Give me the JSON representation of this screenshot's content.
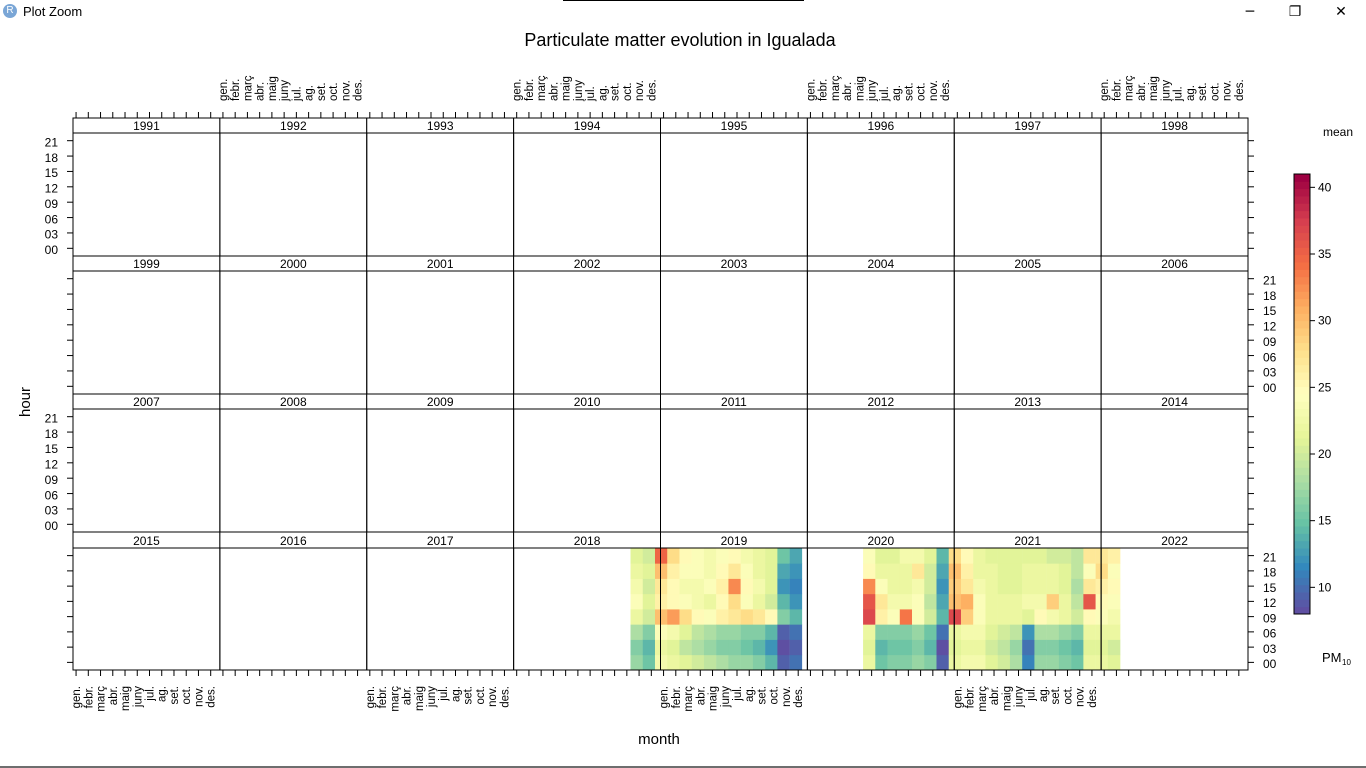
{
  "window": {
    "title": "Plot Zoom",
    "app_icon_letter": "R",
    "minimize_glyph": "─",
    "maximize_glyph": "❐",
    "close_glyph": "✕"
  },
  "chart_data": {
    "type": "heatmap",
    "title": "Particulate matter evolution in Igualada",
    "xlabel": "month",
    "ylabel": "hour",
    "legend_title": "mean",
    "legend_unit": "PM",
    "legend_unit_sub": "10",
    "legend_placement": "right",
    "legend_ticks": [
      10,
      15,
      20,
      25,
      30,
      35,
      40
    ],
    "value_range": [
      8,
      41
    ],
    "palette": [
      "#5e4fa2",
      "#3288bd",
      "#66c2a5",
      "#abdda4",
      "#e6f598",
      "#ffffbf",
      "#fee08b",
      "#fdae61",
      "#f46d43",
      "#d53e4f",
      "#9e0142"
    ],
    "months": [
      "gen.",
      "febr.",
      "març",
      "abr.",
      "maig",
      "juny",
      "jul.",
      "ag.",
      "set.",
      "oct.",
      "nov.",
      "des."
    ],
    "hour_ticks": [
      "00",
      "03",
      "06",
      "09",
      "12",
      "15",
      "18",
      "21"
    ],
    "panels": [
      "1991",
      "1992",
      "1993",
      "1994",
      "1995",
      "1996",
      "1997",
      "1998",
      "1999",
      "2000",
      "2001",
      "2002",
      "2003",
      "2004",
      "2005",
      "2006",
      "2007",
      "2008",
      "2009",
      "2010",
      "2011",
      "2012",
      "2013",
      "2014",
      "2015",
      "2016",
      "2017",
      "2018",
      "2019",
      "2020",
      "2021",
      "2022"
    ],
    "hours": [
      0,
      3,
      6,
      9,
      12,
      15,
      18,
      21
    ],
    "series": [
      {
        "year": 2018,
        "months": [
          11,
          12
        ],
        "values": [
          [
            17,
            15
          ],
          [
            16,
            14
          ],
          [
            18,
            16
          ],
          [
            22,
            20
          ],
          [
            24,
            21
          ],
          [
            23,
            20
          ],
          [
            22,
            21
          ],
          [
            21,
            20
          ]
        ]
      },
      {
        "year": 2019,
        "months": [
          1,
          2,
          3,
          4,
          5,
          6,
          7,
          8,
          9,
          10,
          11,
          12
        ],
        "values": [
          [
            23,
            22,
            21,
            20,
            19,
            18,
            17,
            17,
            16,
            14,
            9,
            10
          ],
          [
            22,
            21,
            19,
            18,
            17,
            16,
            16,
            15,
            14,
            12,
            8,
            9
          ],
          [
            24,
            23,
            21,
            19,
            18,
            17,
            17,
            16,
            16,
            14,
            9,
            10
          ],
          [
            30,
            32,
            28,
            25,
            24,
            26,
            27,
            28,
            27,
            25,
            16,
            14
          ],
          [
            26,
            25,
            24,
            23,
            22,
            25,
            28,
            24,
            22,
            20,
            14,
            12
          ],
          [
            27,
            25,
            23,
            23,
            24,
            26,
            33,
            25,
            23,
            21,
            12,
            11
          ],
          [
            30,
            26,
            24,
            24,
            23,
            25,
            27,
            24,
            22,
            21,
            13,
            12
          ],
          [
            35,
            28,
            25,
            24,
            23,
            24,
            25,
            23,
            22,
            21,
            15,
            13
          ]
        ]
      },
      {
        "year": 2020,
        "months": [
          6,
          7,
          8,
          9,
          10,
          11,
          12
        ],
        "values": [
          [
            22,
            15,
            16,
            16,
            17,
            16,
            9
          ],
          [
            21,
            14,
            15,
            15,
            16,
            14,
            8
          ],
          [
            22,
            16,
            16,
            16,
            17,
            15,
            10
          ],
          [
            37,
            26,
            24,
            34,
            24,
            20,
            14
          ],
          [
            36,
            27,
            23,
            23,
            24,
            19,
            13
          ],
          [
            33,
            24,
            22,
            22,
            23,
            20,
            12
          ],
          [
            25,
            22,
            22,
            22,
            27,
            20,
            13
          ],
          [
            24,
            21,
            21,
            23,
            23,
            21,
            14
          ]
        ]
      },
      {
        "year": 2021,
        "months": [
          1,
          2,
          3,
          4,
          5,
          6,
          7,
          8,
          9,
          10,
          11,
          12
        ],
        "values": [
          [
            22,
            23,
            23,
            21,
            20,
            18,
            11,
            17,
            17,
            16,
            15,
            22
          ],
          [
            21,
            22,
            22,
            20,
            19,
            17,
            10,
            16,
            16,
            15,
            14,
            21
          ],
          [
            22,
            23,
            23,
            21,
            20,
            19,
            12,
            18,
            18,
            17,
            16,
            22
          ],
          [
            37,
            29,
            24,
            22,
            22,
            22,
            21,
            25,
            23,
            22,
            20,
            25
          ],
          [
            30,
            31,
            24,
            22,
            22,
            22,
            23,
            23,
            29,
            22,
            19,
            36
          ],
          [
            29,
            27,
            23,
            22,
            21,
            21,
            22,
            22,
            22,
            21,
            18,
            27
          ],
          [
            30,
            26,
            22,
            22,
            21,
            21,
            22,
            22,
            22,
            21,
            19,
            24
          ],
          [
            28,
            25,
            22,
            21,
            21,
            21,
            21,
            21,
            20,
            20,
            19,
            27
          ]
        ]
      },
      {
        "year": 2022,
        "months": [
          1,
          2
        ],
        "values": [
          [
            22,
            21
          ],
          [
            21,
            20
          ],
          [
            22,
            22
          ],
          [
            24,
            23
          ],
          [
            25,
            24
          ],
          [
            26,
            25
          ],
          [
            28,
            24
          ],
          [
            27,
            26
          ]
        ]
      }
    ]
  }
}
